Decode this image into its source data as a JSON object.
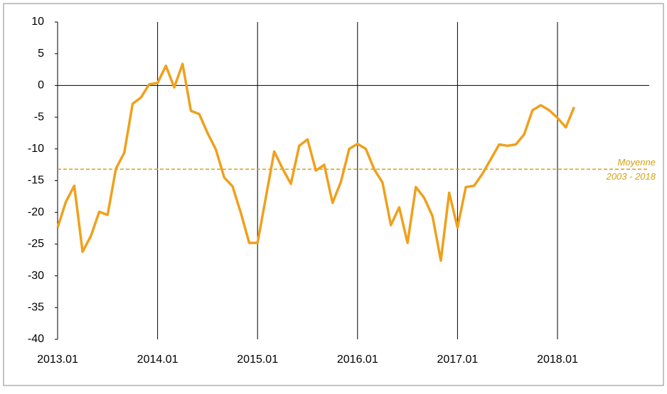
{
  "chart_data": {
    "type": "line",
    "categories": [
      "2013.01",
      null,
      null,
      null,
      null,
      null,
      null,
      null,
      null,
      null,
      null,
      null,
      "2014.01",
      null,
      null,
      null,
      null,
      null,
      null,
      null,
      null,
      null,
      null,
      null,
      "2015.01",
      null,
      null,
      null,
      null,
      null,
      null,
      null,
      null,
      null,
      null,
      null,
      "2016.01",
      null,
      null,
      null,
      null,
      null,
      null,
      null,
      null,
      null,
      null,
      null,
      "2017.01",
      null,
      null,
      null,
      null,
      null,
      null,
      null,
      null,
      null,
      null,
      null,
      "2018.01",
      null,
      null
    ],
    "series": [
      {
        "color": "#f0a01c",
        "values": [
          -22.4,
          -18.3,
          -15.8,
          -26.2,
          -23.7,
          -19.9,
          -20.4,
          -13.1,
          -10.6,
          -2.9,
          -1.9,
          0.2,
          0.4,
          3.1,
          -0.3,
          3.4,
          -4.0,
          -4.5,
          -7.5,
          -10.1,
          -14.5,
          -15.9,
          -20.1,
          -24.8,
          -24.8,
          -17.6,
          -10.4,
          -13.1,
          -15.5,
          -9.5,
          -8.5,
          -13.4,
          -12.5,
          -18.5,
          -15.2,
          -10.0,
          -9.2,
          -10.0,
          -13.2,
          -15.3,
          -22.0,
          -19.2,
          -24.8,
          -16.0,
          -17.7,
          -20.6,
          -27.6,
          -16.9,
          -22.4,
          -16.0,
          -15.8,
          -13.9,
          -11.6,
          -9.3,
          -9.5,
          -9.3,
          -7.7,
          -3.9,
          -3.1,
          -3.9,
          -5.1,
          -6.6,
          -3.4
        ]
      }
    ],
    "ylim": [
      -40,
      10
    ],
    "yticks": [
      -40,
      -35,
      -30,
      -25,
      -20,
      -15,
      -10,
      -5,
      0,
      5,
      10
    ],
    "reference_line": {
      "value": -13.2,
      "color": "#d4a017",
      "label": [
        "Moyenne",
        "2003 - 2018"
      ]
    }
  }
}
